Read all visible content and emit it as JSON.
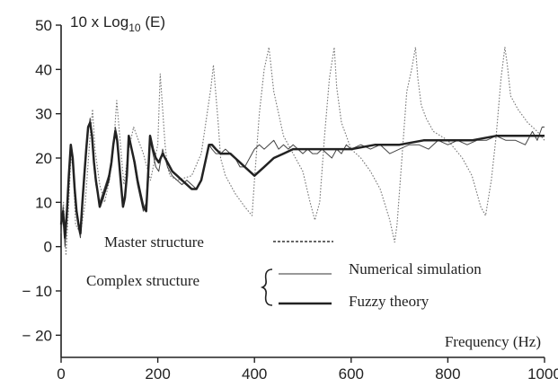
{
  "chart_data": {
    "type": "line",
    "xlabel": "Frequency (Hz)",
    "ylabel_prefix": "10 x Log",
    "ylabel_sub": "10",
    "ylabel_suffix": " (E)",
    "xlim": [
      0,
      1000
    ],
    "ylim": [
      -25,
      50
    ],
    "xticks": [
      0,
      200,
      400,
      600,
      800,
      1000
    ],
    "xtick_labels": [
      "0",
      "200",
      "400",
      "600",
      "800",
      "1000"
    ],
    "yticks": [
      50,
      40,
      30,
      20,
      10,
      0,
      -10,
      -20
    ],
    "ytick_labels": [
      "50",
      "40",
      "30",
      "20",
      "10",
      "0",
      "− 10",
      "− 20"
    ],
    "grid": false,
    "legend": {
      "master_label": "Master structure",
      "complex_label": "Complex structure",
      "numerical_label": "Numerical simulation",
      "fuzzy_label": "Fuzzy theory"
    },
    "series": [
      {
        "name": "Master structure",
        "style": "dotted",
        "x": [
          0,
          5,
          10,
          15,
          20,
          25,
          30,
          40,
          50,
          60,
          65,
          70,
          80,
          90,
          100,
          110,
          115,
          125,
          130,
          140,
          150,
          170,
          185,
          200,
          205,
          215,
          220,
          225,
          240,
          270,
          290,
          310,
          315,
          325,
          330,
          340,
          360,
          380,
          395,
          400,
          410,
          420,
          430,
          440,
          460,
          480,
          500,
          515,
          525,
          535,
          545,
          555,
          565,
          570,
          580,
          590,
          600,
          620,
          640,
          660,
          680,
          690,
          695,
          705,
          715,
          725,
          733,
          738,
          745,
          755,
          770,
          800,
          830,
          850,
          868,
          878,
          890,
          900,
          910,
          918,
          923,
          930,
          945,
          965,
          985,
          1000
        ],
        "y": [
          5,
          10,
          -2,
          8,
          20,
          18,
          5,
          3,
          10,
          25,
          31,
          22,
          14,
          10,
          15,
          25,
          33,
          20,
          14,
          22,
          27,
          21,
          15,
          23,
          39,
          23,
          18,
          16,
          15,
          16,
          21,
          36,
          41,
          28,
          20,
          16,
          12,
          9,
          7,
          15,
          30,
          40,
          45,
          35,
          25,
          21,
          17,
          10,
          6,
          10,
          25,
          38,
          45,
          36,
          28,
          25,
          22,
          20,
          17,
          13,
          6,
          1,
          5,
          20,
          35,
          40,
          45,
          38,
          32,
          29,
          26,
          24,
          20,
          16,
          9,
          7,
          15,
          25,
          38,
          45,
          41,
          34,
          31,
          28,
          26,
          24
        ]
      },
      {
        "name": "Numerical simulation",
        "style": "thin",
        "x": [
          0,
          4,
          8,
          12,
          16,
          20,
          24,
          28,
          32,
          36,
          40,
          44,
          48,
          52,
          56,
          60,
          64,
          68,
          72,
          76,
          80,
          86,
          92,
          98,
          104,
          108,
          112,
          116,
          120,
          124,
          128,
          132,
          136,
          140,
          146,
          152,
          158,
          164,
          170,
          176,
          180,
          184,
          190,
          196,
          202,
          210,
          220,
          230,
          240,
          250,
          260,
          270,
          280,
          290,
          300,
          306,
          312,
          320,
          330,
          340,
          350,
          360,
          370,
          380,
          390,
          400,
          410,
          420,
          430,
          440,
          450,
          460,
          470,
          480,
          490,
          500,
          510,
          520,
          530,
          540,
          550,
          560,
          570,
          580,
          590,
          600,
          620,
          640,
          660,
          680,
          700,
          720,
          740,
          760,
          780,
          800,
          820,
          840,
          860,
          880,
          900,
          920,
          940,
          960,
          975,
          985,
          995,
          1000
        ],
        "y": [
          3,
          9,
          0,
          6,
          15,
          22,
          20,
          12,
          8,
          4,
          2,
          10,
          15,
          22,
          26,
          29,
          24,
          18,
          14,
          12,
          10,
          12,
          14,
          16,
          18,
          22,
          27,
          25,
          18,
          14,
          10,
          12,
          16,
          24,
          22,
          18,
          14,
          11,
          8,
          10,
          18,
          24,
          21,
          18,
          17,
          22,
          18,
          16,
          15,
          14,
          15,
          14,
          13,
          15,
          20,
          23,
          22,
          21,
          21,
          22,
          21,
          20,
          18,
          18,
          20,
          22,
          23,
          22,
          23,
          24,
          22,
          23,
          22,
          23,
          22,
          21,
          22,
          21,
          21,
          22,
          21,
          20,
          22,
          21,
          23,
          22,
          23,
          22,
          23,
          21,
          22,
          23,
          23,
          22,
          24,
          23,
          24,
          23,
          24,
          24,
          25,
          24,
          24,
          23,
          26,
          24,
          27,
          27
        ]
      },
      {
        "name": "Fuzzy theory",
        "style": "thick",
        "x": [
          0,
          4,
          8,
          12,
          16,
          20,
          24,
          28,
          32,
          36,
          40,
          44,
          48,
          52,
          56,
          60,
          64,
          68,
          72,
          76,
          80,
          86,
          92,
          98,
          104,
          108,
          112,
          116,
          120,
          124,
          128,
          132,
          136,
          140,
          146,
          152,
          158,
          164,
          170,
          176,
          180,
          184,
          190,
          196,
          202,
          210,
          220,
          230,
          240,
          250,
          260,
          270,
          280,
          290,
          300,
          306,
          312,
          320,
          330,
          340,
          350,
          360,
          370,
          380,
          390,
          400,
          420,
          440,
          460,
          480,
          500,
          520,
          540,
          560,
          580,
          600,
          650,
          700,
          750,
          800,
          850,
          900,
          950,
          1000
        ],
        "y": [
          5,
          8,
          2,
          8,
          16,
          23,
          20,
          13,
          8,
          5,
          3,
          10,
          16,
          22,
          27,
          28,
          25,
          19,
          15,
          12,
          9,
          11,
          13,
          15,
          19,
          23,
          26,
          24,
          19,
          14,
          9,
          11,
          16,
          25,
          22,
          19,
          15,
          12,
          9,
          8,
          16,
          25,
          22,
          20,
          19,
          21,
          19,
          17,
          16,
          15,
          14,
          13,
          13,
          15,
          20,
          23,
          23,
          22,
          21,
          21,
          21,
          20,
          19,
          18,
          17,
          16,
          18,
          20,
          21,
          22,
          22,
          22,
          22,
          22,
          22,
          22,
          23,
          23,
          24,
          24,
          24,
          25,
          25,
          25
        ]
      }
    ]
  }
}
